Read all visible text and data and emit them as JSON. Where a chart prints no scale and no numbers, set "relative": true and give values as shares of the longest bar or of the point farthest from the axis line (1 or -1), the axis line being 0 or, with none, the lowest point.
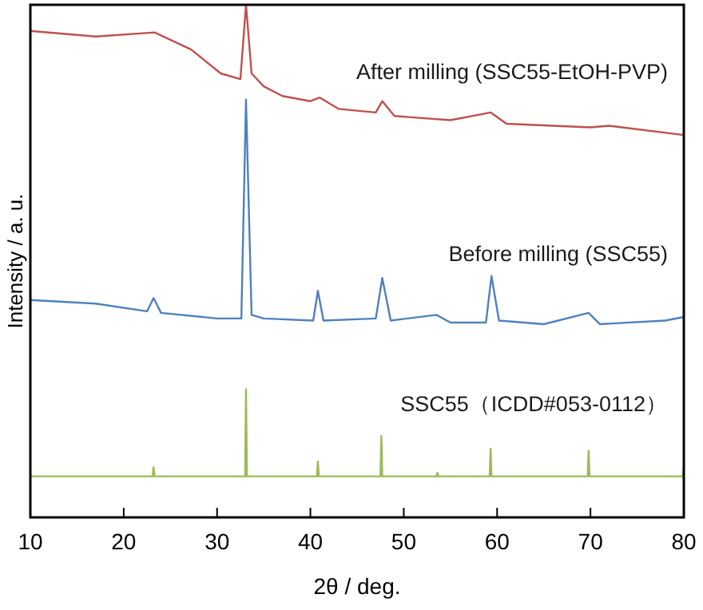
{
  "chart_data": {
    "type": "line",
    "relative": true,
    "xlabel": "2θ / deg.",
    "ylabel": "Intensity / a. u.",
    "xlim": [
      10,
      80
    ],
    "xticks": [
      10,
      20,
      30,
      40,
      50,
      60,
      70,
      80
    ],
    "grid": false,
    "marker": "none",
    "line_style": "solid",
    "series": [
      {
        "name": "After milling (SSC55-EtOH-PVP)",
        "color": "#c0504d",
        "x": [
          10,
          17,
          23.3,
          27.2,
          30.4,
          32.5,
          33.1,
          33.7,
          35,
          37,
          40,
          41,
          43,
          47,
          47.7,
          49,
          55,
          59.3,
          61,
          70,
          72,
          80
        ],
        "values": [
          0.949,
          0.938,
          0.946,
          0.913,
          0.866,
          0.855,
          1,
          0.866,
          0.841,
          0.822,
          0.812,
          0.819,
          0.797,
          0.79,
          0.812,
          0.783,
          0.775,
          0.79,
          0.768,
          0.761,
          0.764,
          0.746
        ]
      },
      {
        "name": "Before milling (SSC55)",
        "color": "#4f81bd",
        "x": [
          10,
          17,
          22.5,
          23.2,
          24,
          30,
          32.6,
          33.1,
          33.7,
          35,
          40.3,
          40.8,
          41.4,
          47,
          47.7,
          48.6,
          53.5,
          55,
          58.8,
          59.4,
          60.2,
          65,
          69.8,
          71,
          78,
          80
        ],
        "values": [
          0.424,
          0.417,
          0.402,
          0.428,
          0.399,
          0.388,
          0.388,
          0.815,
          0.395,
          0.388,
          0.384,
          0.442,
          0.384,
          0.388,
          0.467,
          0.384,
          0.395,
          0.38,
          0.38,
          0.471,
          0.384,
          0.377,
          0.399,
          0.377,
          0.384,
          0.391
        ]
      },
      {
        "name": "SSC55（ICDD#053-0112）",
        "color": "#9bbb59",
        "x": [
          10,
          23.1,
          23.2,
          23.3,
          33,
          33.1,
          33.2,
          40.7,
          40.8,
          40.9,
          47.5,
          47.6,
          47.7,
          53.5,
          53.6,
          53.7,
          59.2,
          59.3,
          59.4,
          69.7,
          69.8,
          69.9,
          79.9,
          80
        ],
        "values": [
          0.08,
          0.08,
          0.098,
          0.08,
          0.08,
          0.25,
          0.08,
          0.08,
          0.109,
          0.08,
          0.08,
          0.159,
          0.08,
          0.08,
          0.087,
          0.08,
          0.08,
          0.134,
          0.08,
          0.08,
          0.13,
          0.08,
          0.08,
          0.098
        ]
      }
    ]
  }
}
